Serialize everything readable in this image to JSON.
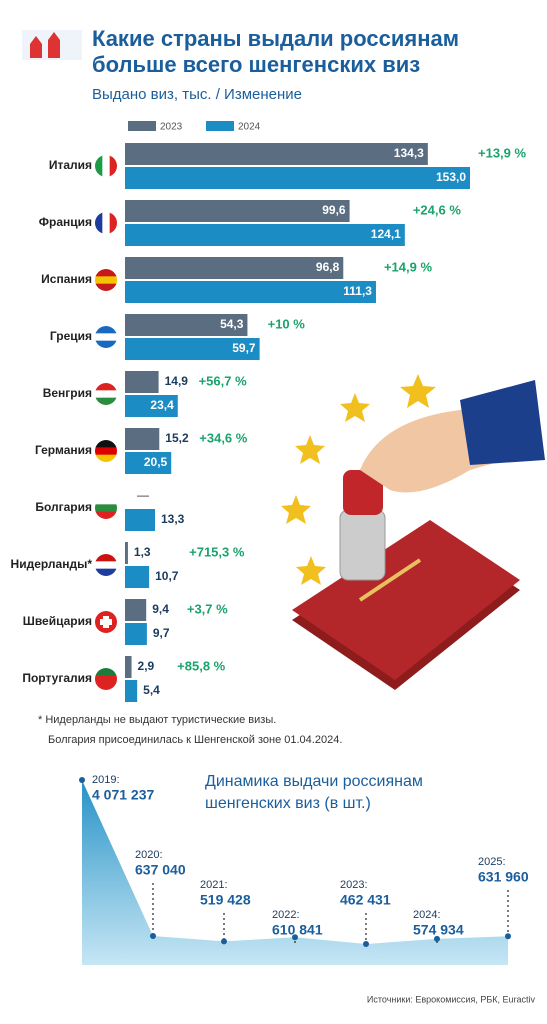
{
  "chart_data": [
    {
      "type": "hbar",
      "title": "Какие страны выдали россиянам больше всего шенгенских виз",
      "subtitle": "Выдано виз, тыс. / Изменение",
      "categories": [
        "Италия",
        "Франция",
        "Испания",
        "Греция",
        "Венгрия",
        "Германия",
        "Болгария",
        "Нидерланды*",
        "Швейцария",
        "Португалия"
      ],
      "series": [
        {
          "name": "2023",
          "color": "#5b6d80",
          "values": [
            134.3,
            99.6,
            96.8,
            54.3,
            14.9,
            15.2,
            null,
            1.3,
            9.4,
            2.9
          ],
          "value_labels": [
            "134,3",
            "99,6",
            "96,8",
            "54,3",
            "14,9",
            "15,2",
            "—",
            "1,3",
            "9,4",
            "2,9"
          ]
        },
        {
          "name": "2024",
          "color": "#1b8cc4",
          "values": [
            153.0,
            124.1,
            111.3,
            59.7,
            23.4,
            20.5,
            13.3,
            10.7,
            9.7,
            5.4
          ],
          "value_labels": [
            "153,0",
            "124,1",
            "111,3",
            "59,7",
            "23,4",
            "20,5",
            "13,3",
            "10,7",
            "9,7",
            "5,4"
          ]
        }
      ],
      "annotations": [
        "+13,9 %",
        "+24,6 %",
        "+14,9 %",
        "+10 %",
        "+56,7 %",
        "+34,6 %",
        null,
        "+715,3 %",
        "+3,7 %",
        "+85,8 %"
      ],
      "notes": [
        "* Нидерланды не выдают туристические визы.",
        "Болгария присоединилась к Шенгенской зоне 01.04.2024."
      ]
    },
    {
      "type": "area",
      "title": "Динамика выдачи россиянам шенгенских виз (в шт.)",
      "color": "#1b8cc4",
      "categories": [
        "2019:",
        "2020:",
        "2021:",
        "2022:",
        "2023:",
        "2024:",
        "2025:"
      ],
      "values": [
        4071237,
        637040,
        519428,
        610841,
        462431,
        574934,
        631960
      ],
      "value_labels": [
        "4 071 237",
        "637 040",
        "519 428",
        "610 841",
        "462 431",
        "574 934",
        "631 960"
      ],
      "source": "Источники: Еврокомиссия, РБК, Euractiv"
    }
  ]
}
